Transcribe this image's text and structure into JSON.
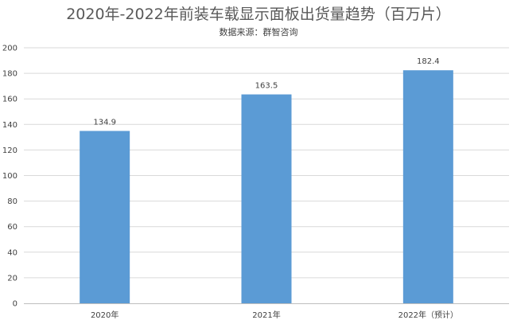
{
  "chart_data": {
    "type": "bar",
    "title": "2020年-2022年前装车载显示面板出货量趋势（百万片）",
    "subtitle": "数据来源：群智咨询",
    "categories": [
      "2020年",
      "2021年",
      "2022年（预计）"
    ],
    "values": [
      134.9,
      163.5,
      182.4
    ],
    "data_labels": [
      "134.9",
      "163.5",
      "182.4"
    ],
    "ylim": [
      0,
      200
    ],
    "yticks": [
      0,
      20,
      40,
      60,
      80,
      100,
      120,
      140,
      160,
      180,
      200
    ],
    "xlabel": "",
    "ylabel": "",
    "grid": true,
    "bar_color": "#5b9bd5"
  }
}
